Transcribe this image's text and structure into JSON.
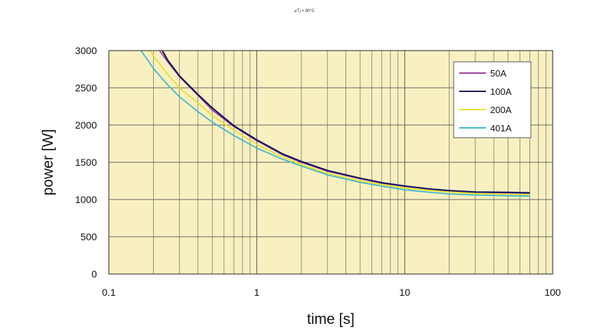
{
  "chart_data": {
    "type": "line",
    "title": "⊿Tj = 80°C",
    "xlabel": "time [s]",
    "ylabel": "power [W]",
    "xscale": "log",
    "xlim": [
      0.1,
      100
    ],
    "ylim": [
      0,
      3000
    ],
    "xticks": [
      "0.1",
      "1",
      "10",
      "100"
    ],
    "yticks": [
      "0",
      "500",
      "1000",
      "1500",
      "2000",
      "2500",
      "3000"
    ],
    "grid": true,
    "legend_position": "top-right",
    "background": "#f8f0c0",
    "series": [
      {
        "name": "50A",
        "color": "#a0449c",
        "x": [
          0.22,
          0.25,
          0.3,
          0.4,
          0.5,
          0.7,
          1,
          1.5,
          2,
          3,
          5,
          7,
          10,
          15,
          20,
          30,
          50,
          70
        ],
        "y": [
          3000,
          2850,
          2650,
          2400,
          2200,
          1980,
          1790,
          1600,
          1500,
          1380,
          1280,
          1220,
          1180,
          1140,
          1120,
          1100,
          1090,
          1085
        ]
      },
      {
        "name": "100A",
        "color": "#1a1660",
        "x": [
          0.23,
          0.25,
          0.3,
          0.4,
          0.5,
          0.7,
          1,
          1.5,
          2,
          3,
          5,
          7,
          10,
          15,
          20,
          30,
          50,
          70
        ],
        "y": [
          3000,
          2870,
          2660,
          2410,
          2230,
          1990,
          1800,
          1610,
          1510,
          1390,
          1285,
          1225,
          1180,
          1140,
          1120,
          1100,
          1095,
          1090
        ]
      },
      {
        "name": "200A",
        "color": "#e8e030",
        "x": [
          0.19,
          0.2,
          0.25,
          0.3,
          0.4,
          0.5,
          0.7,
          1,
          1.5,
          2,
          3,
          5,
          7,
          10,
          15,
          20,
          30,
          50,
          70
        ],
        "y": [
          3000,
          2930,
          2680,
          2500,
          2300,
          2130,
          1930,
          1740,
          1570,
          1470,
          1350,
          1250,
          1200,
          1155,
          1120,
          1100,
          1080,
          1070,
          1065
        ]
      },
      {
        "name": "401A",
        "color": "#40b8cc",
        "x": [
          0.165,
          0.2,
          0.25,
          0.3,
          0.4,
          0.5,
          0.7,
          1,
          1.5,
          2,
          3,
          5,
          7,
          10,
          15,
          20,
          30,
          50,
          70
        ],
        "y": [
          3000,
          2760,
          2540,
          2380,
          2180,
          2040,
          1860,
          1690,
          1540,
          1450,
          1330,
          1230,
          1180,
          1130,
          1095,
          1075,
          1060,
          1050,
          1045
        ]
      }
    ]
  }
}
